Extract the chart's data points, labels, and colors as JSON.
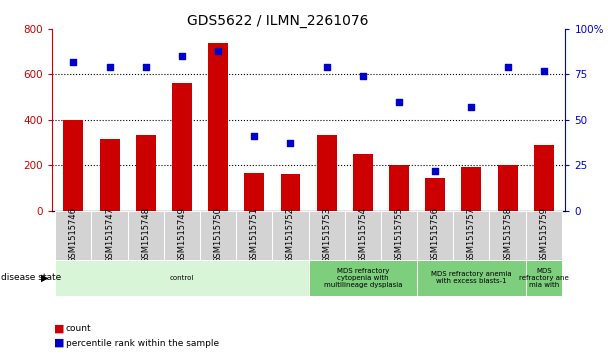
{
  "title": "GDS5622 / ILMN_2261076",
  "samples": [
    "GSM1515746",
    "GSM1515747",
    "GSM1515748",
    "GSM1515749",
    "GSM1515750",
    "GSM1515751",
    "GSM1515752",
    "GSM1515753",
    "GSM1515754",
    "GSM1515755",
    "GSM1515756",
    "GSM1515757",
    "GSM1515758",
    "GSM1515759"
  ],
  "counts": [
    400,
    315,
    335,
    560,
    740,
    165,
    162,
    335,
    248,
    200,
    143,
    190,
    200,
    287
  ],
  "percentiles": [
    82,
    79,
    79,
    85,
    88,
    41,
    37,
    79,
    74,
    60,
    22,
    57,
    79,
    77
  ],
  "disease_groups": [
    {
      "label": "control",
      "start": 0,
      "end": 7,
      "color": "#d8f5d8"
    },
    {
      "label": "MDS refractory\ncytopenia with\nmultilineage dysplasia",
      "start": 7,
      "end": 10,
      "color": "#7dce7d"
    },
    {
      "label": "MDS refractory anemia\nwith excess blasts-1",
      "start": 10,
      "end": 13,
      "color": "#7dce7d"
    },
    {
      "label": "MDS\nrefractory ane\nmia with",
      "start": 13,
      "end": 14,
      "color": "#7dce7d"
    }
  ],
  "bar_color": "#cc0000",
  "dot_color": "#0000cc",
  "left_ylim": [
    0,
    800
  ],
  "right_ylim": [
    0,
    100
  ],
  "left_yticks": [
    0,
    200,
    400,
    600,
    800
  ],
  "right_yticks": [
    0,
    25,
    50,
    75,
    100
  ],
  "right_yticklabels": [
    "0",
    "25",
    "50",
    "75",
    "100%"
  ],
  "grid_values": [
    200,
    400,
    600
  ],
  "background_color": "#ffffff",
  "sample_box_color": "#d3d3d3"
}
